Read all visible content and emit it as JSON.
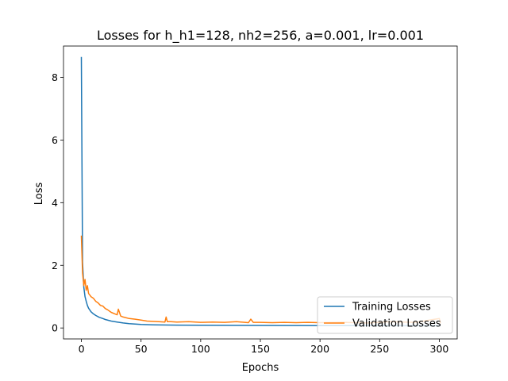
{
  "chart_data": {
    "type": "line",
    "title": "Losses for h_h1=128, nh2=256, a=0.001, lr=0.001",
    "xlabel": "Epochs",
    "ylabel": "Loss",
    "xlim": [
      -15,
      315
    ],
    "ylim": [
      -0.35,
      9.0
    ],
    "xticks": [
      0,
      50,
      100,
      150,
      200,
      250,
      300
    ],
    "yticks": [
      0,
      2,
      4,
      6,
      8
    ],
    "grid": false,
    "legend_position": "lower-right",
    "series": [
      {
        "name": "Training Losses",
        "color": "#1f77b4",
        "x": [
          0,
          1,
          2,
          3,
          4,
          5,
          6,
          8,
          10,
          12,
          15,
          18,
          20,
          25,
          30,
          35,
          40,
          50,
          60,
          80,
          100,
          150,
          200,
          250,
          301
        ],
        "y": [
          8.65,
          2.1,
          1.3,
          1.0,
          0.85,
          0.72,
          0.63,
          0.52,
          0.45,
          0.4,
          0.34,
          0.3,
          0.27,
          0.22,
          0.19,
          0.16,
          0.14,
          0.11,
          0.1,
          0.09,
          0.085,
          0.08,
          0.075,
          0.072,
          0.07
        ]
      },
      {
        "name": "Validation Losses",
        "color": "#ff7f0e",
        "x": [
          0,
          1,
          2,
          3,
          4,
          5,
          6,
          7,
          8,
          10,
          12,
          14,
          16,
          18,
          20,
          22,
          25,
          28,
          30,
          31,
          33,
          35,
          40,
          45,
          50,
          55,
          60,
          65,
          70,
          71,
          72,
          75,
          80,
          90,
          100,
          110,
          120,
          130,
          140,
          142,
          144,
          150,
          160,
          170,
          180,
          190,
          200,
          220,
          240,
          260,
          280,
          300,
          301
        ],
        "y": [
          2.95,
          1.75,
          1.35,
          1.55,
          1.2,
          1.35,
          1.1,
          1.05,
          1.0,
          0.95,
          0.85,
          0.8,
          0.72,
          0.7,
          0.62,
          0.58,
          0.5,
          0.45,
          0.42,
          0.6,
          0.38,
          0.35,
          0.3,
          0.28,
          0.25,
          0.22,
          0.21,
          0.2,
          0.19,
          0.35,
          0.2,
          0.2,
          0.19,
          0.2,
          0.18,
          0.19,
          0.18,
          0.2,
          0.17,
          0.28,
          0.18,
          0.18,
          0.17,
          0.18,
          0.17,
          0.18,
          0.17,
          0.18,
          0.16,
          0.2,
          0.18,
          0.3,
          0.15
        ]
      }
    ]
  }
}
